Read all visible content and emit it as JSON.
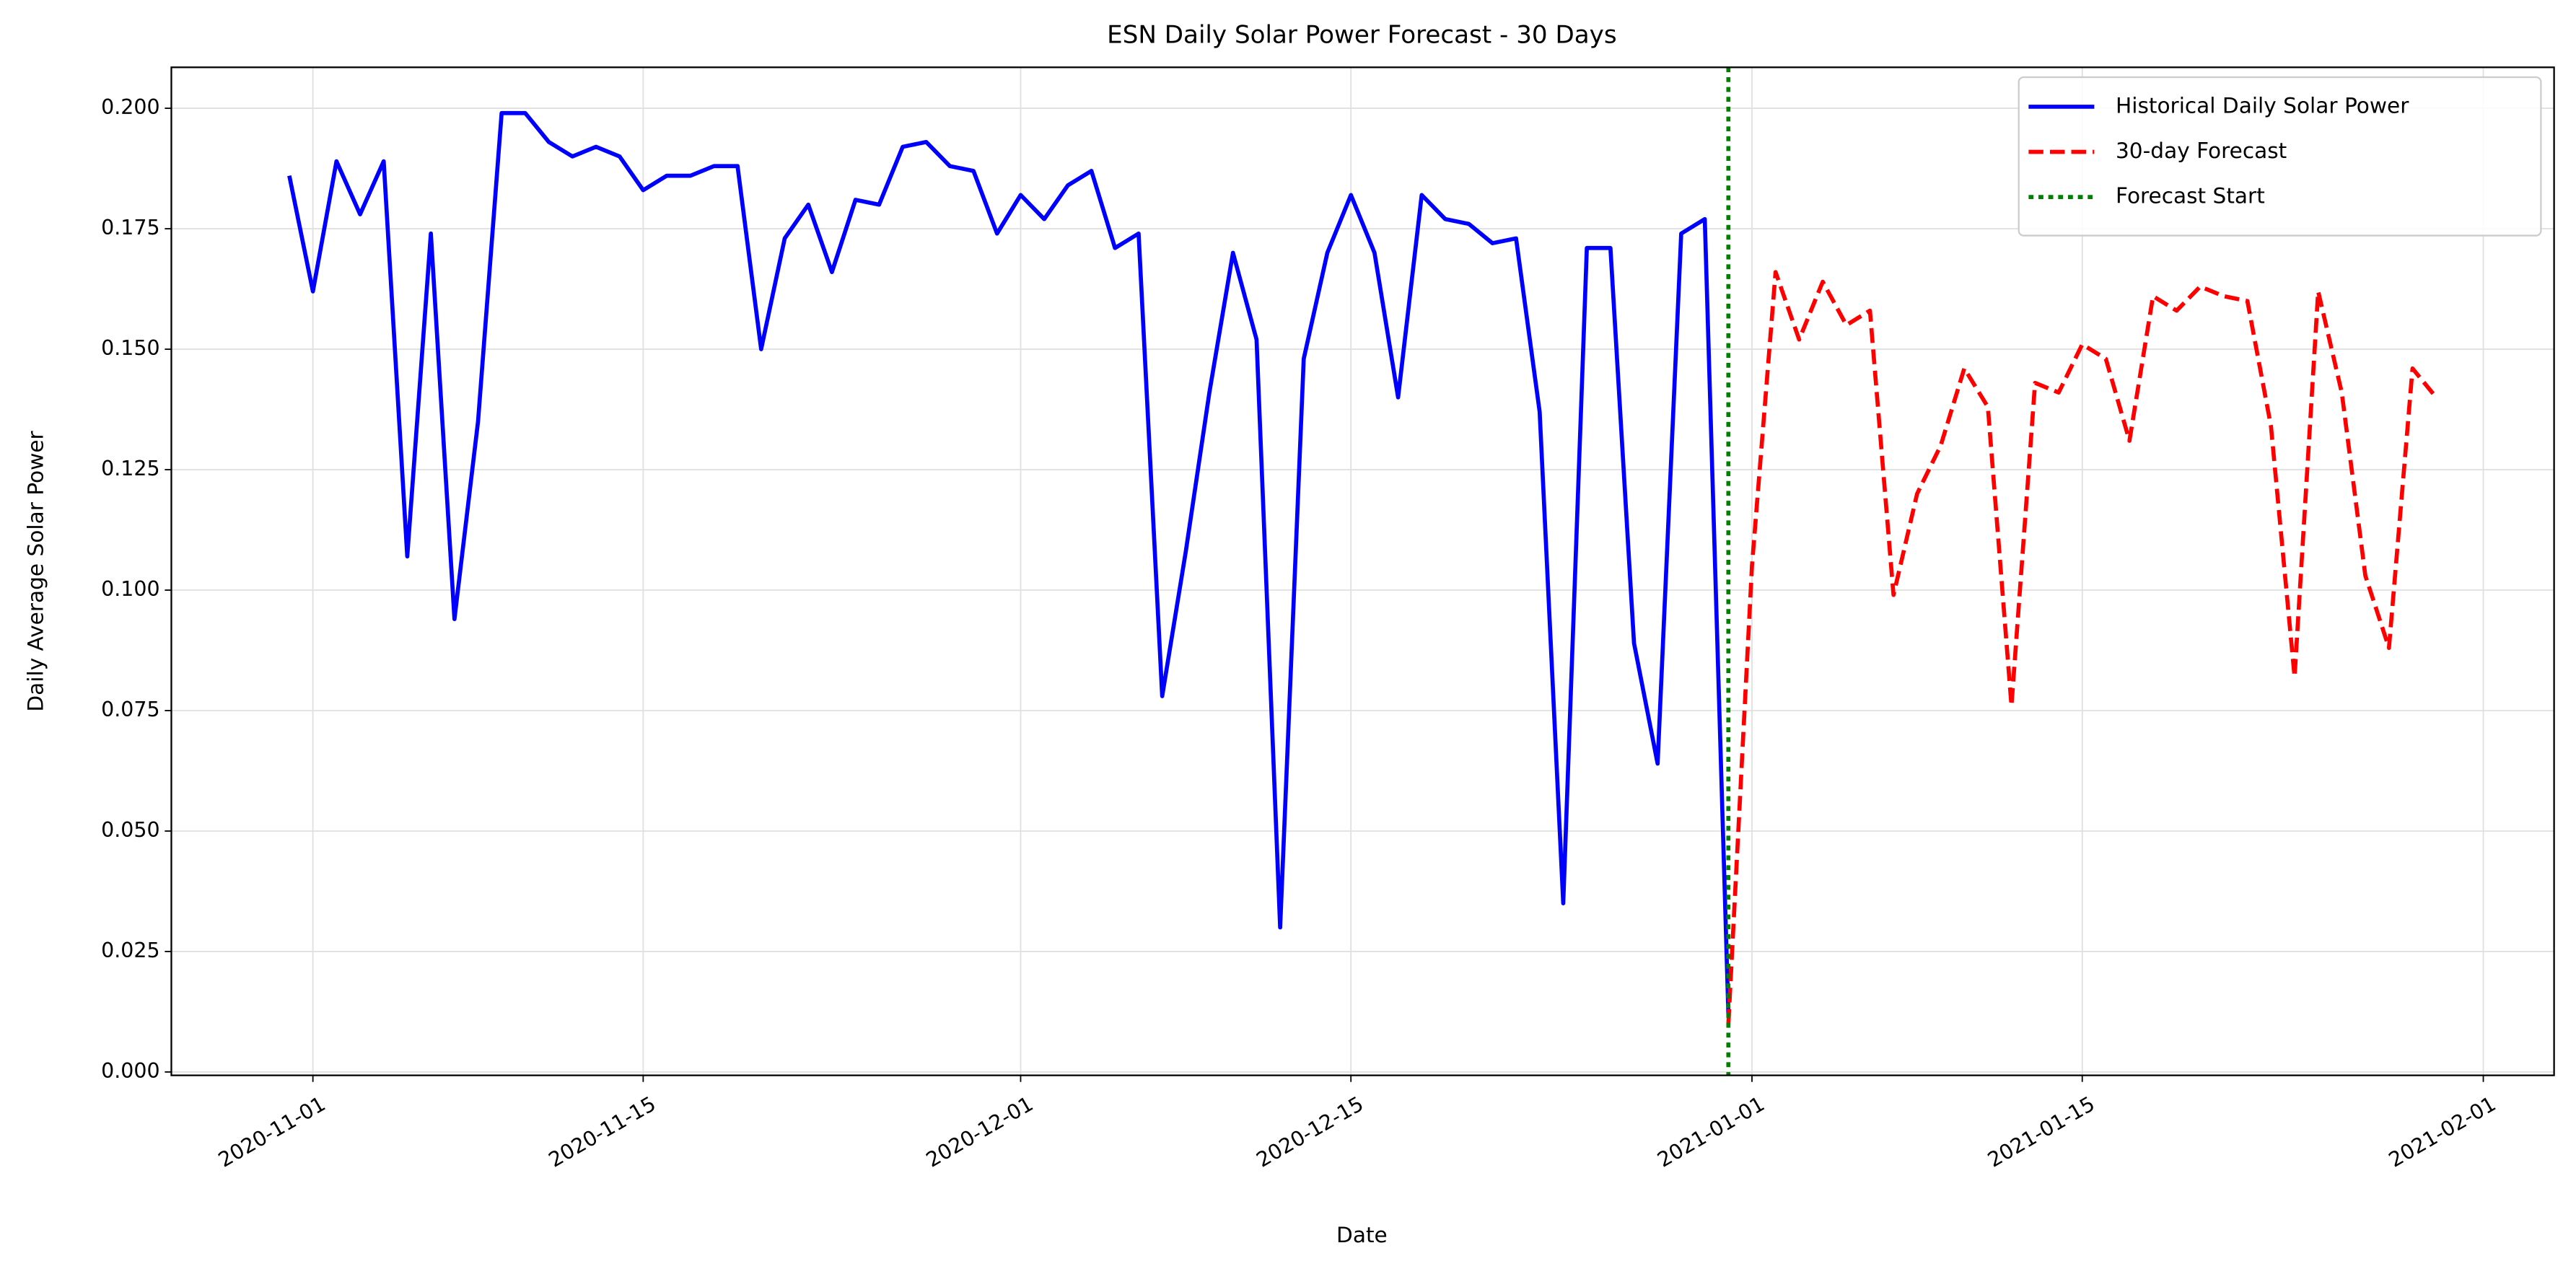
{
  "chart_data": {
    "type": "line",
    "title": "ESN Daily Solar Power Forecast - 30 Days",
    "xlabel": "Date",
    "ylabel": "Daily Average Solar Power",
    "series": [
      {
        "name": "Historical Daily Solar Power",
        "color": "#0000ff",
        "style": "solid",
        "x": [
          "2020-10-31",
          "2020-11-01",
          "2020-11-02",
          "2020-11-03",
          "2020-11-04",
          "2020-11-05",
          "2020-11-06",
          "2020-11-07",
          "2020-11-08",
          "2020-11-09",
          "2020-11-10",
          "2020-11-11",
          "2020-11-12",
          "2020-11-13",
          "2020-11-14",
          "2020-11-15",
          "2020-11-16",
          "2020-11-17",
          "2020-11-18",
          "2020-11-19",
          "2020-11-20",
          "2020-11-21",
          "2020-11-22",
          "2020-11-23",
          "2020-11-24",
          "2020-11-25",
          "2020-11-26",
          "2020-11-27",
          "2020-11-28",
          "2020-11-29",
          "2020-11-30",
          "2020-12-01",
          "2020-12-02",
          "2020-12-03",
          "2020-12-04",
          "2020-12-05",
          "2020-12-06",
          "2020-12-07",
          "2020-12-08",
          "2020-12-09",
          "2020-12-10",
          "2020-12-11",
          "2020-12-12",
          "2020-12-13",
          "2020-12-14",
          "2020-12-15",
          "2020-12-16",
          "2020-12-17",
          "2020-12-18",
          "2020-12-19",
          "2020-12-20",
          "2020-12-21",
          "2020-12-22",
          "2020-12-23",
          "2020-12-24",
          "2020-12-25",
          "2020-12-26",
          "2020-12-27",
          "2020-12-28",
          "2020-12-29",
          "2020-12-30",
          "2020-12-31"
        ],
        "values": [
          0.186,
          0.162,
          0.189,
          0.178,
          0.189,
          0.107,
          0.174,
          0.094,
          0.135,
          0.199,
          0.199,
          0.193,
          0.19,
          0.192,
          0.19,
          0.183,
          0.186,
          0.186,
          0.188,
          0.188,
          0.15,
          0.173,
          0.18,
          0.166,
          0.181,
          0.18,
          0.192,
          0.193,
          0.188,
          0.187,
          0.174,
          0.182,
          0.177,
          0.184,
          0.187,
          0.171,
          0.174,
          0.078,
          0.108,
          0.141,
          0.17,
          0.152,
          0.03,
          0.148,
          0.17,
          0.182,
          0.17,
          0.14,
          0.182,
          0.177,
          0.176,
          0.172,
          0.173,
          0.137,
          0.035,
          0.171,
          0.171,
          0.089,
          0.064,
          0.174,
          0.177,
          0.012
        ]
      },
      {
        "name": "30-day Forecast",
        "color": "#ff0000",
        "style": "dashed",
        "x": [
          "2020-12-31",
          "2021-01-01",
          "2021-01-02",
          "2021-01-03",
          "2021-01-04",
          "2021-01-05",
          "2021-01-06",
          "2021-01-07",
          "2021-01-08",
          "2021-01-09",
          "2021-01-10",
          "2021-01-11",
          "2021-01-12",
          "2021-01-13",
          "2021-01-14",
          "2021-01-15",
          "2021-01-16",
          "2021-01-17",
          "2021-01-18",
          "2021-01-19",
          "2021-01-20",
          "2021-01-21",
          "2021-01-22",
          "2021-01-23",
          "2021-01-24",
          "2021-01-25",
          "2021-01-26",
          "2021-01-27",
          "2021-01-28",
          "2021-01-29",
          "2021-01-30"
        ],
        "values": [
          0.01,
          0.105,
          0.166,
          0.152,
          0.164,
          0.155,
          0.158,
          0.099,
          0.12,
          0.13,
          0.146,
          0.138,
          0.076,
          0.143,
          0.141,
          0.151,
          0.148,
          0.131,
          0.161,
          0.158,
          0.163,
          0.161,
          0.16,
          0.134,
          0.082,
          0.162,
          0.141,
          0.103,
          0.088,
          0.146,
          0.14
        ]
      }
    ],
    "vlines": [
      {
        "name": "Forecast Start",
        "x": "2020-12-31",
        "color": "#008000",
        "style": "dotted"
      }
    ],
    "xlim": [
      "2020-10-26",
      "2021-02-04"
    ],
    "xticks": [
      "2020-11-01",
      "2020-11-15",
      "2020-12-01",
      "2020-12-15",
      "2021-01-01",
      "2021-01-15",
      "2021-02-01"
    ],
    "ylim": [
      -0.0007,
      0.2085
    ],
    "yticks": [
      {
        "value": 0,
        "label": "0.000"
      },
      0.025,
      {
        "value": 0.05,
        "label": "0.050"
      },
      0.075,
      {
        "value": 0.1,
        "label": "0.100"
      },
      0.125,
      {
        "value": 0.15,
        "label": "0.150"
      },
      0.175,
      {
        "value": 0.2,
        "label": "0.200"
      }
    ],
    "grid": true,
    "legend": "upper right"
  }
}
